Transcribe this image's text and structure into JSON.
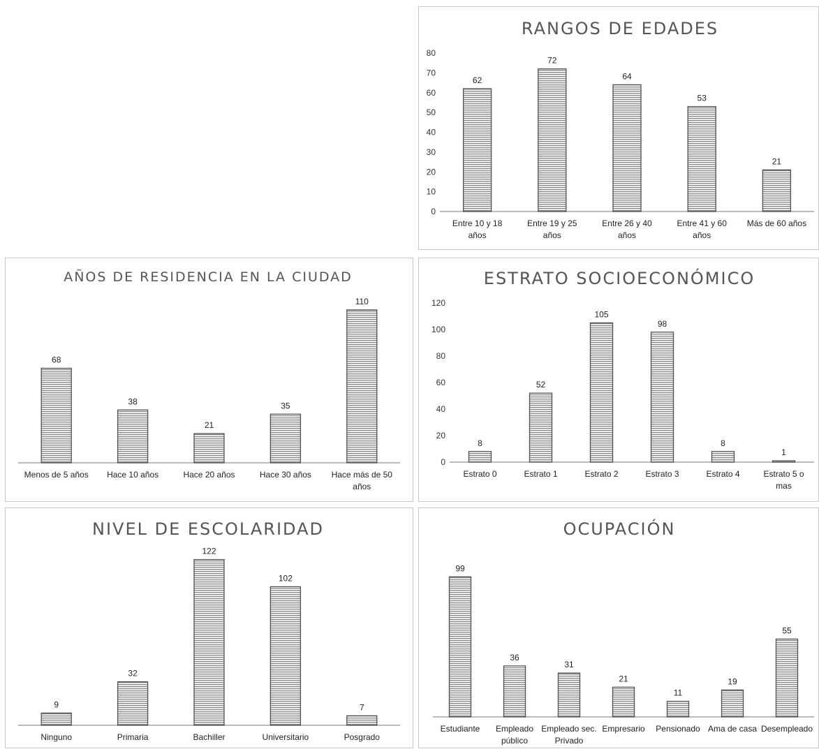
{
  "colors": {
    "bar_line": "#505050",
    "bar_fill": "#ffffff",
    "axis": "#a6a6a6",
    "title": "#555555"
  },
  "chart_data": [
    {
      "id": "edades",
      "type": "bar",
      "title": "RANGOS DE EDADES",
      "categories": [
        [
          "Entre 10 y 18",
          "años"
        ],
        [
          "Entre 19 y 25",
          "años"
        ],
        [
          "Entre 26 y 40",
          "años"
        ],
        [
          "Entre 41 y 60",
          "años"
        ],
        [
          "Más de 60 años"
        ]
      ],
      "values": [
        62,
        72,
        64,
        53,
        21
      ],
      "ylim": [
        0,
        80
      ],
      "yticks": [
        0,
        10,
        20,
        30,
        40,
        50,
        60,
        70,
        80
      ],
      "show_yaxis": true,
      "grid": false,
      "legend": "none"
    },
    {
      "id": "anos",
      "type": "bar",
      "title": "AÑOS DE RESIDENCIA EN LA CIUDAD",
      "categories": [
        [
          "Menos de 5 años"
        ],
        [
          "Hace 10 años"
        ],
        [
          "Hace 20 años"
        ],
        [
          "Hace 30 años"
        ],
        [
          "Hace más de 50",
          "años"
        ]
      ],
      "values": [
        68,
        38,
        21,
        35,
        110
      ],
      "ylim": [
        0,
        120
      ],
      "show_yaxis": false,
      "grid": false,
      "legend": "none"
    },
    {
      "id": "estrato",
      "type": "bar",
      "title": "ESTRATO SOCIOECONÓMICO",
      "categories": [
        [
          "Estrato 0"
        ],
        [
          "Estrato 1"
        ],
        [
          "Estrato 2"
        ],
        [
          "Estrato 3"
        ],
        [
          "Estrato 4"
        ],
        [
          "Estrato 5 o",
          "mas"
        ]
      ],
      "values": [
        8,
        52,
        105,
        98,
        8,
        1
      ],
      "ylim": [
        0,
        120
      ],
      "yticks": [
        0,
        20,
        40,
        60,
        80,
        100,
        120
      ],
      "show_yaxis": true,
      "grid": false,
      "legend": "none"
    },
    {
      "id": "escol",
      "type": "bar",
      "title": "NIVEL DE ESCOLARIDAD",
      "categories": [
        [
          "Ninguno"
        ],
        [
          "Primaria"
        ],
        [
          "Bachiller"
        ],
        [
          "Universitario"
        ],
        [
          "Posgrado"
        ]
      ],
      "values": [
        9,
        32,
        122,
        102,
        7
      ],
      "ylim": [
        0,
        130
      ],
      "show_yaxis": false,
      "grid": false,
      "legend": "none"
    },
    {
      "id": "ocup",
      "type": "bar",
      "title": "OCUPACIÓN",
      "categories": [
        [
          "Estudiante"
        ],
        [
          "Empleado",
          "público"
        ],
        [
          "Empleado sec.",
          "Privado"
        ],
        [
          "Empresario"
        ],
        [
          "Pensionado"
        ],
        [
          "Ama de casa"
        ],
        [
          "Desempleado"
        ]
      ],
      "values": [
        99,
        36,
        31,
        21,
        11,
        19,
        55
      ],
      "ylim": [
        0,
        110
      ],
      "show_yaxis": false,
      "grid": false,
      "legend": "none"
    }
  ]
}
